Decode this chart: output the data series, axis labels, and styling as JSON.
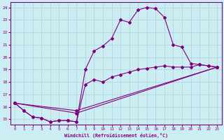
{
  "xlabel": "Windchill (Refroidissement éolien,°C)",
  "bg_color": "#cceef2",
  "grid_color": "#aad4da",
  "line_color": "#800080",
  "xlim": [
    -0.5,
    23.5
  ],
  "ylim": [
    14.6,
    24.4
  ],
  "xticks": [
    0,
    1,
    2,
    3,
    4,
    5,
    6,
    7,
    8,
    9,
    10,
    11,
    12,
    13,
    14,
    15,
    16,
    17,
    18,
    19,
    20,
    21,
    22,
    23
  ],
  "yticks": [
    15,
    16,
    17,
    18,
    19,
    20,
    21,
    22,
    23,
    24
  ],
  "curves": [
    {
      "x": [
        0,
        1,
        2,
        3,
        4,
        5,
        6,
        7,
        8,
        9,
        10,
        11,
        12,
        13,
        14,
        15,
        16,
        17,
        18,
        19,
        20,
        21,
        22,
        23
      ],
      "y": [
        16.3,
        15.7,
        15.2,
        15.1,
        14.8,
        14.9,
        14.9,
        14.8,
        19.0,
        20.5,
        20.9,
        21.5,
        23.0,
        22.8,
        23.8,
        24.0,
        23.9,
        23.2,
        21.0,
        20.8,
        19.5,
        19.4,
        19.3,
        19.2
      ]
    },
    {
      "x": [
        0,
        1,
        2,
        3,
        4,
        5,
        6,
        7,
        8,
        9,
        10,
        11,
        12,
        13,
        14,
        15,
        16,
        17,
        18,
        19,
        20,
        21,
        22,
        23
      ],
      "y": [
        16.3,
        15.7,
        15.2,
        15.1,
        14.8,
        14.9,
        14.9,
        14.8,
        17.8,
        18.2,
        18.0,
        18.4,
        18.6,
        18.8,
        19.0,
        19.1,
        19.2,
        19.3,
        19.2,
        19.2,
        19.2,
        19.4,
        19.3,
        19.2
      ]
    },
    {
      "x": [
        0,
        7,
        23
      ],
      "y": [
        16.3,
        15.5,
        19.2
      ]
    },
    {
      "x": [
        0,
        7,
        23
      ],
      "y": [
        16.3,
        15.7,
        19.2
      ]
    }
  ]
}
